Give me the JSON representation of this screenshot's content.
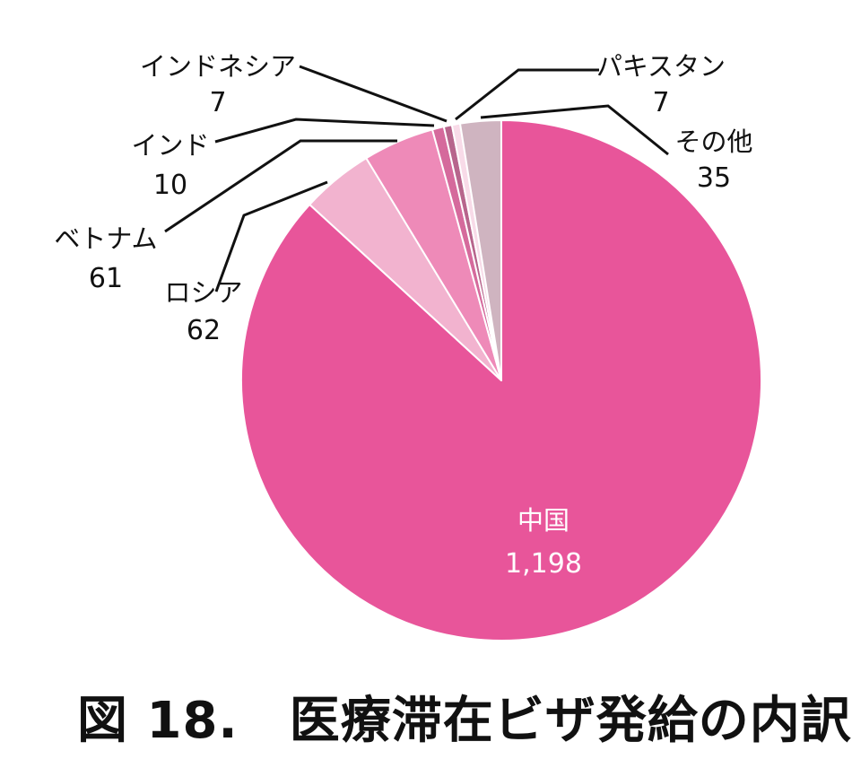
{
  "caption": "図 18.　医療滞在ビザ発給の内訳",
  "chart_data": {
    "type": "pie",
    "title": "",
    "start_angle_deg": 0,
    "direction": "clockwise",
    "slices": [
      {
        "label": "中国",
        "value": 1198,
        "value_label": "1,198",
        "color": "#e8559a"
      },
      {
        "label": "ロシア",
        "value": 62,
        "value_label": "62",
        "color": "#f2b3cf"
      },
      {
        "label": "ベトナム",
        "value": 61,
        "value_label": "61",
        "color": "#ee8ab8"
      },
      {
        "label": "インド",
        "value": 10,
        "value_label": "10",
        "color": "#d56a9c"
      },
      {
        "label": "インドネシア",
        "value": 7,
        "value_label": "7",
        "color": "#b7658c"
      },
      {
        "label": "パキスタン",
        "value": 7,
        "value_label": "7",
        "color": "#f8dbe8"
      },
      {
        "label": "その他",
        "value": 35,
        "value_label": "35",
        "color": "#cfb4c0"
      }
    ]
  }
}
